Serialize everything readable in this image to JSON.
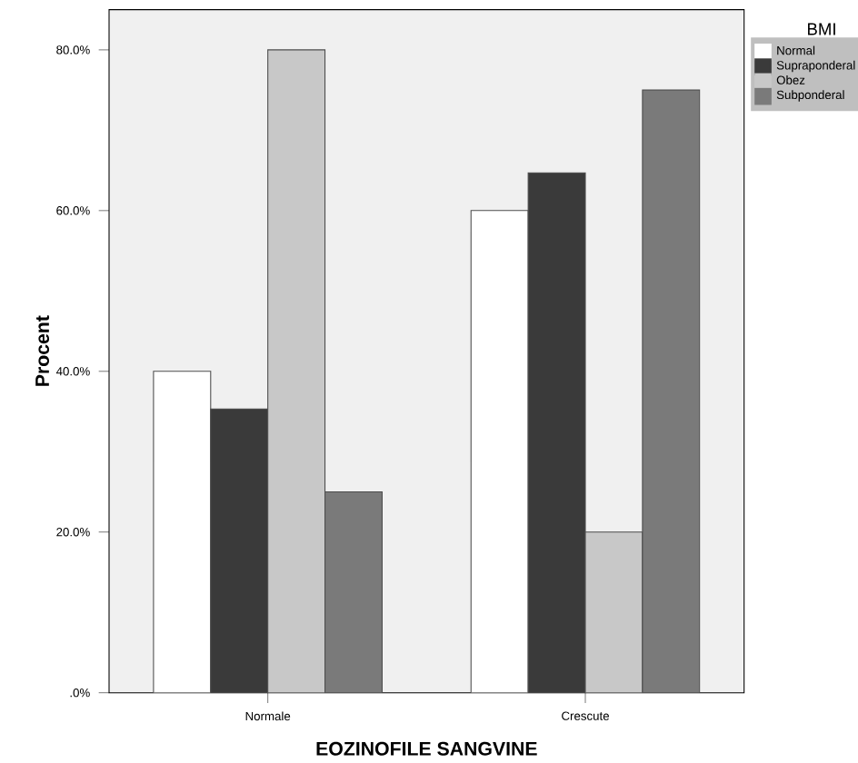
{
  "chart_data": {
    "type": "bar",
    "xlabel": "EOZINOFILE SANGVINE",
    "ylabel": "Procent",
    "legend_title": "BMI",
    "categories": [
      "Normale",
      "Crescute"
    ],
    "series": [
      {
        "name": "Normal",
        "color": "#ffffff",
        "values": [
          40,
          60
        ]
      },
      {
        "name": "Supraponderal",
        "color": "#3a3a3a",
        "values": [
          35.3,
          64.7
        ]
      },
      {
        "name": "Obez",
        "color": "#c8c8c8",
        "values": [
          80,
          20
        ]
      },
      {
        "name": "Subponderal",
        "color": "#7a7a7a",
        "values": [
          25,
          75
        ]
      }
    ],
    "ylim": [
      0,
      85
    ],
    "yticks": [
      {
        "value": 0,
        "label": ".0%"
      },
      {
        "value": 20,
        "label": "20.0%"
      },
      {
        "value": 40,
        "label": "40.0%"
      },
      {
        "value": 60,
        "label": "60.0%"
      },
      {
        "value": 80,
        "label": "80.0%"
      }
    ],
    "legend": "top right"
  }
}
